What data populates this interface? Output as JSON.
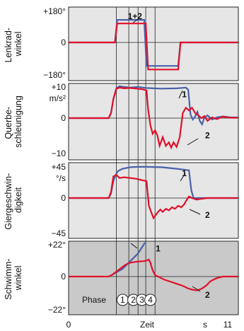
{
  "chart_data": [
    {
      "type": "line",
      "ylabel": "Lenkrad-\nwinkel",
      "unit": "",
      "yticks": [
        "+180°",
        "0",
        "−180°"
      ],
      "ylim": [
        -180,
        180
      ],
      "grid": false,
      "series": [
        {
          "name": "1",
          "color": "#4a60a8",
          "x": [
            0,
            3.0,
            3.15,
            4.9,
            5.05,
            7.1,
            7.25,
            11
          ],
          "y": [
            0,
            0,
            125,
            125,
            -130,
            -130,
            0,
            0
          ]
        },
        {
          "name": "2",
          "color": "#e0102a",
          "x": [
            0,
            3.0,
            3.15,
            5.0,
            5.15,
            7.1,
            7.25,
            11
          ],
          "y": [
            0,
            0,
            105,
            105,
            -150,
            -150,
            0,
            0
          ]
        }
      ],
      "callouts": [
        {
          "text": "1+2",
          "x": 4.3,
          "y": 145
        }
      ]
    },
    {
      "type": "line",
      "ylabel": "Querbe-\nschleunigung",
      "unit": "m/s²",
      "yticks": [
        "+10",
        "0",
        "−10"
      ],
      "ylim": [
        -10,
        10
      ],
      "grid": false,
      "series": [
        {
          "name": "1",
          "color": "#4a60a8",
          "x": [
            0,
            2.6,
            2.75,
            2.9,
            3.1,
            3.3,
            3.6,
            4.0,
            4.5,
            5.0,
            6.0,
            7.0,
            7.6,
            7.75,
            7.9,
            8.05,
            8.2,
            8.35,
            8.5,
            8.65,
            8.8,
            9.0,
            9.3,
            9.6,
            10.0,
            10.5,
            11
          ],
          "y": [
            0,
            0,
            1.5,
            5.5,
            8.7,
            9.2,
            9.0,
            8.8,
            9.0,
            8.7,
            8.5,
            8.6,
            8.8,
            8.2,
            1.0,
            -0.4,
            0.5,
            1.8,
            -0.8,
            -1.8,
            0.2,
            0.8,
            -0.4,
            0.2,
            0.5,
            0.2,
            0.2
          ]
        },
        {
          "name": "2",
          "color": "#e0102a",
          "x": [
            0,
            2.6,
            2.75,
            2.9,
            3.1,
            3.3,
            3.6,
            4.0,
            4.4,
            4.8,
            5.05,
            5.15,
            5.3,
            5.45,
            5.6,
            5.75,
            5.9,
            6.1,
            6.3,
            6.5,
            6.65,
            6.8,
            7.0,
            7.2,
            7.4,
            7.6,
            7.8,
            8.0,
            8.2,
            8.4,
            8.6,
            8.8,
            9.0,
            9.3,
            9.6,
            10.0,
            10.5,
            11
          ],
          "y": [
            0,
            0,
            1.5,
            5.5,
            8.5,
            8.8,
            8.6,
            8.7,
            8.5,
            8.3,
            8.0,
            2.5,
            -2.0,
            -4.5,
            -3.5,
            -5.0,
            -8.0,
            -5.5,
            -8.0,
            -7.0,
            -8.5,
            -7.0,
            -8.3,
            -5.5,
            1.5,
            3.0,
            2.2,
            3.0,
            1.5,
            0.8,
            0.0,
            0.6,
            -0.8,
            0.2,
            -0.3,
            0.4,
            0.1,
            0.1
          ]
        }
      ],
      "callouts": [
        {
          "text": "1",
          "x": 7.5,
          "y": 6.8
        },
        {
          "text": "2",
          "x": 9.0,
          "y": -5.0
        }
      ]
    },
    {
      "type": "line",
      "ylabel": "Giergeschwin-\ndigkeit",
      "unit": "°/s",
      "yticks": [
        "+45",
        "0",
        "−45"
      ],
      "ylim": [
        -45,
        45
      ],
      "grid": false,
      "series": [
        {
          "name": "1",
          "color": "#4a60a8",
          "x": [
            0,
            2.6,
            2.75,
            2.9,
            3.05,
            3.2,
            3.5,
            4.0,
            4.5,
            5.0,
            6.0,
            7.0,
            7.8,
            7.95,
            8.1,
            11
          ],
          "y": [
            0,
            0,
            6,
            22,
            30,
            35,
            38,
            40,
            40.5,
            40.5,
            40,
            38,
            36,
            10,
            0,
            0
          ]
        },
        {
          "name": "2",
          "color": "#e0102a",
          "x": [
            0,
            2.6,
            2.75,
            2.9,
            3.1,
            3.3,
            3.6,
            4.0,
            4.4,
            4.8,
            5.05,
            5.2,
            5.35,
            5.5,
            5.65,
            5.8,
            5.95,
            6.1,
            6.3,
            6.5,
            6.7,
            6.9,
            7.1,
            7.3,
            7.5,
            7.6,
            7.8,
            8.0,
            8.3,
            8.6,
            9.0,
            9.5,
            10.0,
            11
          ],
          "y": [
            0,
            0,
            8,
            28,
            30,
            26,
            27,
            26,
            25,
            23,
            22,
            -10,
            -18,
            -26,
            -22,
            -18,
            -15,
            -18,
            -14,
            -16,
            -12,
            -14,
            -10,
            -12,
            -8,
            -4,
            2,
            0,
            -2,
            -1,
            0,
            0,
            0,
            0
          ]
        }
      ],
      "callouts": [
        {
          "text": "1",
          "x": 7.5,
          "y": 32
        },
        {
          "text": "2",
          "x": 9.0,
          "y": -22
        }
      ]
    },
    {
      "type": "line",
      "ylabel": "Schwimm-\nwinkel",
      "unit": "",
      "yticks": [
        "+22°",
        "0",
        "−22°"
      ],
      "ylim": [
        -22,
        22
      ],
      "grid": false,
      "series": [
        {
          "name": "1",
          "color": "#4a60a8",
          "x": [
            2.8,
            3.5,
            4.0,
            4.5,
            4.95
          ],
          "y": [
            1,
            5,
            10,
            15,
            22
          ]
        },
        {
          "name": "2",
          "color": "#e0102a",
          "x": [
            0,
            2.6,
            2.8,
            3.0,
            3.2,
            3.4,
            3.6,
            3.8,
            4.0,
            4.3,
            4.6,
            4.9,
            5.1,
            5.2,
            5.3,
            5.45,
            5.6,
            5.8,
            6.0,
            6.2,
            6.5,
            6.8,
            7.1,
            7.4,
            7.7,
            8.0,
            8.3,
            8.6,
            8.9,
            9.2,
            9.6,
            10.0,
            10.5,
            11
          ],
          "y": [
            0,
            0,
            1,
            2.5,
            4,
            5.5,
            7,
            8.2,
            9,
            9.5,
            9.8,
            10,
            10.5,
            11,
            9,
            4,
            1,
            0,
            -1,
            -2,
            -3,
            -4,
            -5,
            -6,
            -7.5,
            -8.5,
            -9,
            -8,
            -6,
            -3,
            -1,
            0,
            0,
            0
          ]
        }
      ],
      "callouts": [
        {
          "text": "1",
          "x": 5.8,
          "y": 18
        },
        {
          "text": "2",
          "x": 9.0,
          "y": -12
        }
      ]
    }
  ],
  "x_axis": {
    "label": "Zeit",
    "unit": "s",
    "tick_left": "0",
    "tick_right": "11",
    "xlim": [
      0,
      11
    ]
  },
  "phases": {
    "label": "Phase",
    "numbers": [
      "1",
      "2",
      "3",
      "4"
    ],
    "boundaries": [
      3.1,
      3.9,
      4.5,
      5.0,
      5.6
    ]
  }
}
